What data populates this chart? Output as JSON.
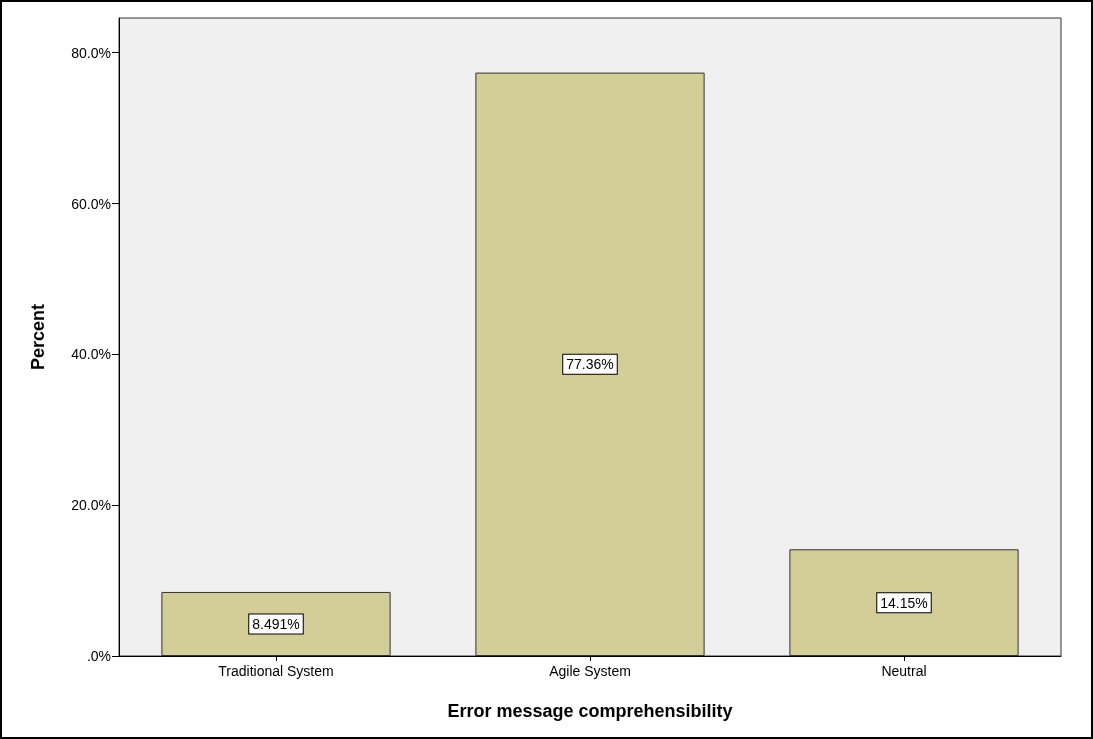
{
  "chart_data": {
    "type": "bar",
    "xlabel": "Error message comprehensibility",
    "ylabel": "Percent",
    "categories": [
      "Traditional System",
      "Agile System",
      "Neutral"
    ],
    "values": [
      8.491,
      77.36,
      14.15
    ],
    "value_labels": [
      "8.491%",
      "77.36%",
      "14.15%"
    ],
    "color": "#d3ce97",
    "ylim": [
      0,
      84.6
    ],
    "yticks": [
      {
        "value": 0,
        "label": ".0%"
      },
      {
        "value": 20,
        "label": "20.0%"
      },
      {
        "value": 40,
        "label": "40.0%"
      },
      {
        "value": 60,
        "label": "60.0%"
      },
      {
        "value": 80,
        "label": "80.0%"
      }
    ]
  }
}
